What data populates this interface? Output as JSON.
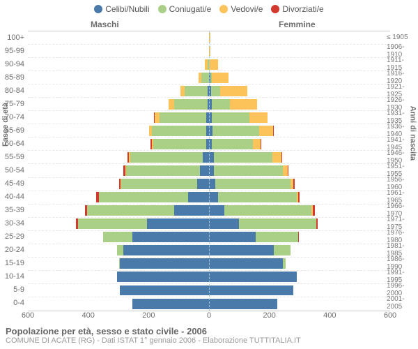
{
  "legend": {
    "items": [
      {
        "label": "Celibi/Nubili",
        "color": "#4a7aa9"
      },
      {
        "label": "Coniugati/e",
        "color": "#aad088"
      },
      {
        "label": "Vedovi/e",
        "color": "#fbc35a"
      },
      {
        "label": "Divorziati/e",
        "color": "#d33a2e"
      }
    ]
  },
  "sides": {
    "male": "Maschi",
    "female": "Femmine"
  },
  "axis": {
    "left_label": "Fasce di età",
    "right_label": "Anni di nascita",
    "x_max": 600,
    "x_ticks": [
      600,
      400,
      200,
      0,
      200,
      400,
      600
    ]
  },
  "footer": {
    "title": "Popolazione per età, sesso e stato civile - 2006",
    "subtitle": "COMUNE DI ACATE (RG) - Dati ISTAT 1° gennaio 2006 - Elaborazione TUTTITALIA.IT"
  },
  "colors": {
    "single": "#4a7aa9",
    "married": "#aad088",
    "widowed": "#fbc35a",
    "divorced": "#d33a2e",
    "grid": "#e8e8e8",
    "center": "#a4c7d6",
    "background": "#ffffff"
  },
  "rows": [
    {
      "age": "100+",
      "birth": "≤ 1905",
      "m": {
        "s": 0,
        "c": 0,
        "w": 0,
        "d": 0
      },
      "f": {
        "s": 0,
        "c": 0,
        "w": 4,
        "d": 0
      }
    },
    {
      "age": "95-99",
      "birth": "1906-1910",
      "m": {
        "s": 0,
        "c": 0,
        "w": 0,
        "d": 0
      },
      "f": {
        "s": 0,
        "c": 0,
        "w": 5,
        "d": 0
      }
    },
    {
      "age": "90-94",
      "birth": "1911-1915",
      "m": {
        "s": 0,
        "c": 5,
        "w": 10,
        "d": 0
      },
      "f": {
        "s": 0,
        "c": 0,
        "w": 30,
        "d": 0
      }
    },
    {
      "age": "85-89",
      "birth": "1916-1920",
      "m": {
        "s": 0,
        "c": 25,
        "w": 10,
        "d": 0
      },
      "f": {
        "s": 5,
        "c": 5,
        "w": 55,
        "d": 0
      }
    },
    {
      "age": "80-84",
      "birth": "1921-1925",
      "m": {
        "s": 5,
        "c": 75,
        "w": 15,
        "d": 0
      },
      "f": {
        "s": 8,
        "c": 30,
        "w": 90,
        "d": 0
      }
    },
    {
      "age": "75-79",
      "birth": "1926-1930",
      "m": {
        "s": 5,
        "c": 110,
        "w": 20,
        "d": 0
      },
      "f": {
        "s": 10,
        "c": 60,
        "w": 90,
        "d": 0
      }
    },
    {
      "age": "70-74",
      "birth": "1931-1935",
      "m": {
        "s": 10,
        "c": 155,
        "w": 15,
        "d": 3
      },
      "f": {
        "s": 10,
        "c": 125,
        "w": 60,
        "d": 0
      }
    },
    {
      "age": "65-69",
      "birth": "1936-1940",
      "m": {
        "s": 10,
        "c": 180,
        "w": 8,
        "d": 0
      },
      "f": {
        "s": 12,
        "c": 155,
        "w": 45,
        "d": 3
      }
    },
    {
      "age": "60-64",
      "birth": "1941-1945",
      "m": {
        "s": 10,
        "c": 175,
        "w": 5,
        "d": 5
      },
      "f": {
        "s": 10,
        "c": 135,
        "w": 25,
        "d": 3
      }
    },
    {
      "age": "55-59",
      "birth": "1946-1950",
      "m": {
        "s": 20,
        "c": 240,
        "w": 5,
        "d": 5
      },
      "f": {
        "s": 15,
        "c": 195,
        "w": 30,
        "d": 3
      }
    },
    {
      "age": "50-54",
      "birth": "1951-1955",
      "m": {
        "s": 30,
        "c": 245,
        "w": 3,
        "d": 5
      },
      "f": {
        "s": 15,
        "c": 230,
        "w": 15,
        "d": 3
      }
    },
    {
      "age": "45-49",
      "birth": "1956-1960",
      "m": {
        "s": 40,
        "c": 250,
        "w": 3,
        "d": 5
      },
      "f": {
        "s": 20,
        "c": 250,
        "w": 10,
        "d": 5
      }
    },
    {
      "age": "40-44",
      "birth": "1961-1965",
      "m": {
        "s": 70,
        "c": 295,
        "w": 0,
        "d": 8
      },
      "f": {
        "s": 30,
        "c": 260,
        "w": 5,
        "d": 5
      }
    },
    {
      "age": "35-39",
      "birth": "1966-1970",
      "m": {
        "s": 115,
        "c": 290,
        "w": 0,
        "d": 5
      },
      "f": {
        "s": 50,
        "c": 290,
        "w": 3,
        "d": 8
      }
    },
    {
      "age": "30-34",
      "birth": "1971-1975",
      "m": {
        "s": 205,
        "c": 230,
        "w": 0,
        "d": 5
      },
      "f": {
        "s": 100,
        "c": 255,
        "w": 0,
        "d": 5
      }
    },
    {
      "age": "25-29",
      "birth": "1976-1980",
      "m": {
        "s": 255,
        "c": 95,
        "w": 0,
        "d": 0
      },
      "f": {
        "s": 155,
        "c": 140,
        "w": 0,
        "d": 3
      }
    },
    {
      "age": "20-24",
      "birth": "1981-1985",
      "m": {
        "s": 285,
        "c": 20,
        "w": 0,
        "d": 0
      },
      "f": {
        "s": 215,
        "c": 55,
        "w": 0,
        "d": 0
      }
    },
    {
      "age": "15-19",
      "birth": "1986-1990",
      "m": {
        "s": 295,
        "c": 3,
        "w": 0,
        "d": 0
      },
      "f": {
        "s": 245,
        "c": 8,
        "w": 0,
        "d": 0
      }
    },
    {
      "age": "10-14",
      "birth": "1991-1995",
      "m": {
        "s": 305,
        "c": 0,
        "w": 0,
        "d": 0
      },
      "f": {
        "s": 290,
        "c": 0,
        "w": 0,
        "d": 0
      }
    },
    {
      "age": "5-9",
      "birth": "1996-2000",
      "m": {
        "s": 295,
        "c": 0,
        "w": 0,
        "d": 0
      },
      "f": {
        "s": 280,
        "c": 0,
        "w": 0,
        "d": 0
      }
    },
    {
      "age": "0-4",
      "birth": "2001-2005",
      "m": {
        "s": 255,
        "c": 0,
        "w": 0,
        "d": 0
      },
      "f": {
        "s": 225,
        "c": 0,
        "w": 0,
        "d": 0
      }
    }
  ]
}
